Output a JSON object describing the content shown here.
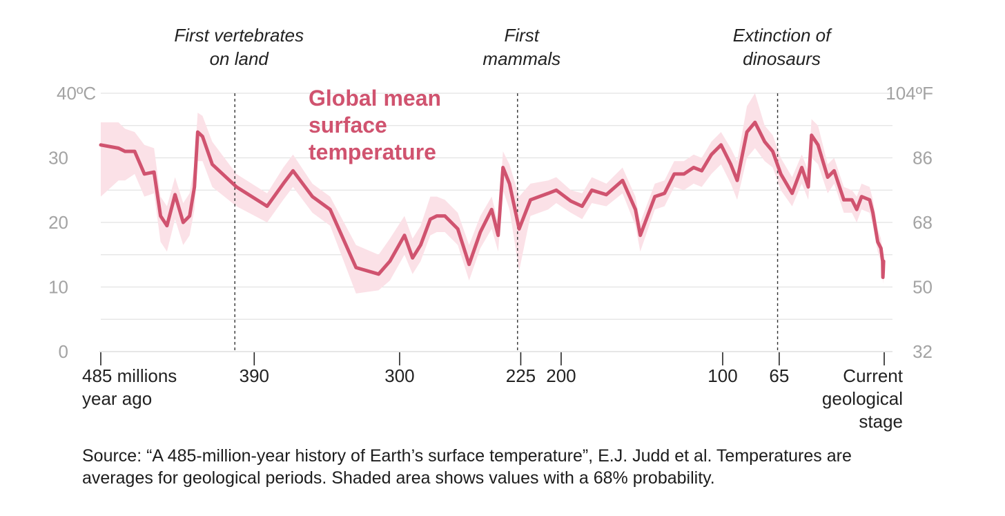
{
  "chart_data": {
    "type": "line",
    "title": "Global mean surface temperature",
    "title_lines": [
      "Global mean",
      "surface",
      "temperature"
    ],
    "x_label": "millions of years ago",
    "x_range": [
      485,
      0
    ],
    "y_label_left": "°C",
    "y_range": [
      0,
      40
    ],
    "y_ticks_left": [
      {
        "value": 0,
        "label": "0"
      },
      {
        "value": 10,
        "label": "10"
      },
      {
        "value": 20,
        "label": "20"
      },
      {
        "value": 30,
        "label": "30"
      },
      {
        "value": 40,
        "label": "40ºC"
      }
    ],
    "y_ticks_right": [
      {
        "value": 0,
        "label": "32"
      },
      {
        "value": 10,
        "label": "50"
      },
      {
        "value": 20,
        "label": "68"
      },
      {
        "value": 30,
        "label": "86"
      },
      {
        "value": 40,
        "label": "104ºF"
      }
    ],
    "gridlines": [
      5,
      15,
      25,
      35
    ],
    "x_ticks": [
      {
        "value": 485,
        "lines": [
          "485 millions",
          "year ago"
        ],
        "align": "start"
      },
      {
        "value": 390,
        "lines": [
          "390"
        ],
        "align": "middle"
      },
      {
        "value": 300,
        "lines": [
          "300"
        ],
        "align": "middle"
      },
      {
        "value": 225,
        "lines": [
          "225"
        ],
        "align": "middle"
      },
      {
        "value": 200,
        "lines": [
          "200"
        ],
        "align": "middle"
      },
      {
        "value": 100,
        "lines": [
          "100"
        ],
        "align": "middle"
      },
      {
        "value": 65,
        "lines": [
          "65"
        ],
        "align": "middle"
      },
      {
        "value": 0,
        "lines": [
          "Current",
          "geological",
          "stage"
        ],
        "align": "end"
      }
    ],
    "events": [
      {
        "x": 402,
        "lines": [
          "First vertebrates",
          "on land"
        ]
      },
      {
        "x": 227,
        "lines": [
          "First",
          "mammals"
        ]
      },
      {
        "x": 66,
        "lines": [
          "Extinction of",
          "dinosaurs"
        ]
      }
    ],
    "line_color": "#d0536f",
    "band_color": "#fbe1e7",
    "band_label": "68% probability",
    "series": [
      {
        "name": "Global mean surface temperature",
        "points": [
          [
            485,
            32.0,
            35.5,
            24.0
          ],
          [
            474,
            31.5,
            35.5,
            26.5
          ],
          [
            470,
            31.0,
            34.5,
            26.5
          ],
          [
            464,
            31.0,
            34.0,
            27.5
          ],
          [
            458,
            27.5,
            32.0,
            24.0
          ],
          [
            452,
            27.8,
            31.5,
            24.5
          ],
          [
            448,
            21.0,
            24.0,
            17.0
          ],
          [
            444,
            19.5,
            22.5,
            15.5
          ],
          [
            439,
            24.3,
            27.0,
            20.5
          ],
          [
            434,
            20.0,
            23.0,
            16.5
          ],
          [
            430,
            21.0,
            24.5,
            18.0
          ],
          [
            427,
            25.5,
            29.0,
            22.0
          ],
          [
            425,
            34.0,
            37.0,
            29.5
          ],
          [
            422,
            33.3,
            36.5,
            29.5
          ],
          [
            416,
            29.0,
            32.5,
            25.5
          ],
          [
            401,
            25.5,
            27.5,
            22.5
          ],
          [
            382,
            22.5,
            24.5,
            20.0
          ],
          [
            372,
            26.0,
            28.5,
            23.5
          ],
          [
            366,
            28.0,
            30.5,
            25.5
          ],
          [
            354,
            24.0,
            26.0,
            21.5
          ],
          [
            343,
            22.0,
            24.0,
            19.5
          ],
          [
            327,
            13.0,
            16.5,
            9.0
          ],
          [
            313,
            12.0,
            15.0,
            9.5
          ],
          [
            306,
            14.0,
            17.5,
            11.0
          ],
          [
            297,
            18.0,
            21.0,
            15.0
          ],
          [
            292,
            14.5,
            17.5,
            12.0
          ],
          [
            287,
            16.5,
            19.5,
            14.0
          ],
          [
            281,
            20.5,
            24.0,
            18.0
          ],
          [
            277,
            21.0,
            24.0,
            18.5
          ],
          [
            272,
            21.0,
            23.5,
            18.5
          ],
          [
            264,
            19.0,
            21.5,
            16.5
          ],
          [
            257,
            13.5,
            16.5,
            11.0
          ],
          [
            250,
            18.5,
            21.0,
            16.0
          ],
          [
            243,
            22.0,
            24.0,
            19.0
          ],
          [
            239,
            18.0,
            20.0,
            15.5
          ],
          [
            236,
            28.5,
            31.0,
            25.0
          ],
          [
            232,
            26.0,
            29.0,
            22.0
          ],
          [
            226,
            19.0,
            24.0,
            12.5
          ],
          [
            219,
            23.5,
            26.0,
            21.0
          ],
          [
            208,
            24.5,
            26.5,
            22.0
          ],
          [
            203,
            25.0,
            27.0,
            23.0
          ],
          [
            194,
            23.3,
            25.0,
            21.5
          ],
          [
            187,
            22.5,
            24.5,
            20.5
          ],
          [
            181,
            25.0,
            27.0,
            23.0
          ],
          [
            172,
            24.3,
            26.0,
            22.5
          ],
          [
            162,
            26.5,
            28.5,
            24.5
          ],
          [
            154,
            22.0,
            24.0,
            19.5
          ],
          [
            151,
            18.0,
            20.0,
            15.5
          ],
          [
            142,
            24.0,
            26.0,
            22.0
          ],
          [
            136,
            24.5,
            26.5,
            22.5
          ],
          [
            130,
            27.5,
            29.5,
            25.5
          ],
          [
            124,
            27.5,
            29.5,
            25.0
          ],
          [
            118,
            28.5,
            30.5,
            26.0
          ],
          [
            113,
            28.0,
            30.0,
            25.5
          ],
          [
            107,
            30.5,
            32.5,
            27.5
          ],
          [
            101,
            32.0,
            34.0,
            29.0
          ],
          [
            95,
            29.0,
            31.5,
            26.0
          ],
          [
            91,
            26.5,
            29.5,
            23.5
          ],
          [
            85,
            34.0,
            38.0,
            30.0
          ],
          [
            80,
            35.5,
            40.0,
            31.5
          ],
          [
            74,
            32.5,
            35.0,
            29.5
          ],
          [
            69,
            31.0,
            33.5,
            28.5
          ],
          [
            64,
            27.5,
            30.0,
            25.0
          ],
          [
            57,
            24.5,
            27.0,
            22.5
          ],
          [
            51,
            28.5,
            30.5,
            26.0
          ],
          [
            47,
            25.5,
            28.0,
            23.5
          ],
          [
            45,
            33.5,
            36.0,
            30.0
          ],
          [
            41,
            32.0,
            35.0,
            29.0
          ],
          [
            35,
            27.0,
            29.0,
            24.5
          ],
          [
            31,
            28.0,
            30.0,
            26.0
          ],
          [
            25,
            23.5,
            25.5,
            21.5
          ],
          [
            20,
            23.5,
            25.0,
            21.5
          ],
          [
            17,
            22.0,
            24.0,
            20.0
          ],
          [
            14,
            24.0,
            26.0,
            22.0
          ],
          [
            9,
            23.5,
            25.5,
            21.5
          ],
          [
            7,
            21.5,
            23.5,
            19.5
          ],
          [
            4,
            17.0,
            19.0,
            15.5
          ],
          [
            2,
            16.0,
            17.5,
            14.0
          ],
          [
            1,
            14.0,
            15.5,
            12.5
          ],
          [
            0.8,
            11.5,
            13.0,
            10.5
          ],
          [
            0.6,
            12.5,
            14.0,
            11.0
          ],
          [
            0.4,
            14.0,
            15.5,
            12.5
          ]
        ],
        "point_fields": [
          "mya",
          "mean",
          "upper",
          "lower"
        ]
      }
    ]
  },
  "note": {
    "text": "Source: “A 485-million-year history of Earth’s surface temperature”, E.J. Judd et al. Temperatures are averages for geological periods. Shaded area shows values with a 68% probability."
  }
}
